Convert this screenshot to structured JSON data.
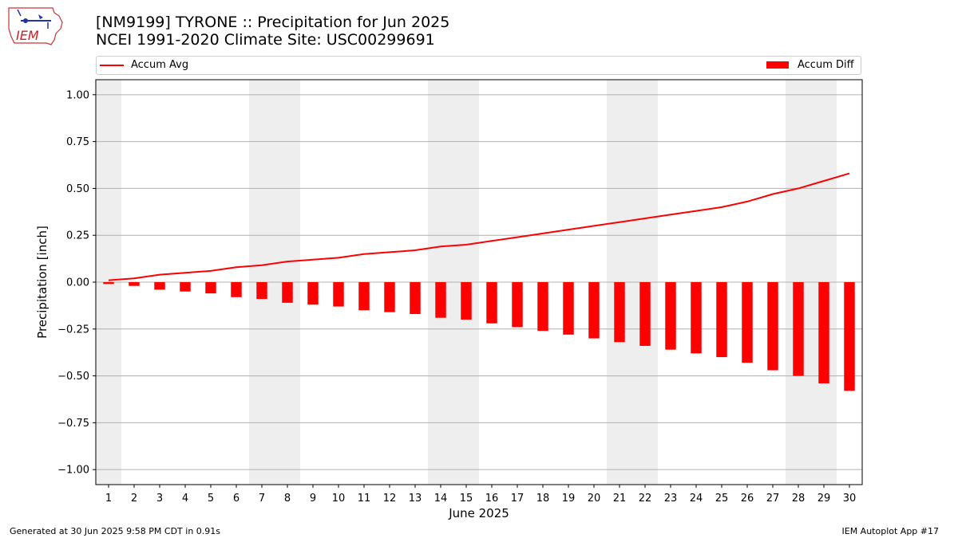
{
  "header": {
    "title_line1": "[NM9199] TYRONE :: Precipitation for Jun 2025",
    "title_line2": "NCEI 1991-2020 Climate Site: USC00299691"
  },
  "logo": {
    "text": "IEM"
  },
  "footer": {
    "left": "Generated at 30 Jun 2025 9:58 PM CDT in 0.91s",
    "right": "IEM Autoplot App #17"
  },
  "colors": {
    "accent": "#ff0000",
    "weekend_shade": "#eeeeee",
    "grid": "#b0b0b0"
  },
  "chart_data": {
    "type": "bar",
    "title": "[NM9199] TYRONE :: Precipitation for Jun 2025",
    "subtitle": "NCEI 1991-2020 Climate Site: USC00299691",
    "xlabel": "June 2025",
    "ylabel": "Precipitation [inch]",
    "ylim": [
      -1.08,
      1.08
    ],
    "yticks": [
      -1.0,
      -0.75,
      -0.5,
      -0.25,
      0.0,
      0.25,
      0.5,
      0.75,
      1.0
    ],
    "ytick_labels": [
      "−1.00",
      "−0.75",
      "−0.50",
      "−0.25",
      "0.00",
      "0.25",
      "0.50",
      "0.75",
      "1.00"
    ],
    "categories": [
      "1",
      "2",
      "3",
      "4",
      "5",
      "6",
      "7",
      "8",
      "9",
      "10",
      "11",
      "12",
      "13",
      "14",
      "15",
      "16",
      "17",
      "18",
      "19",
      "20",
      "21",
      "22",
      "23",
      "24",
      "25",
      "26",
      "27",
      "28",
      "29",
      "30"
    ],
    "grid": true,
    "legend_placement": "top",
    "weekend_shaded_days": [
      [
        1,
        1
      ],
      [
        7,
        8
      ],
      [
        14,
        15
      ],
      [
        21,
        22
      ],
      [
        28,
        29
      ]
    ],
    "series": [
      {
        "name": "Accum Avg",
        "type": "line",
        "color": "#ff0000",
        "values": [
          0.01,
          0.02,
          0.04,
          0.05,
          0.06,
          0.08,
          0.09,
          0.11,
          0.12,
          0.13,
          0.15,
          0.16,
          0.17,
          0.19,
          0.2,
          0.22,
          0.24,
          0.26,
          0.28,
          0.3,
          0.32,
          0.34,
          0.36,
          0.38,
          0.4,
          0.43,
          0.47,
          0.5,
          0.54,
          0.58
        ]
      },
      {
        "name": "Accum Diff",
        "type": "bar",
        "color": "#ff0000",
        "values": [
          -0.01,
          -0.02,
          -0.04,
          -0.05,
          -0.06,
          -0.08,
          -0.09,
          -0.11,
          -0.12,
          -0.13,
          -0.15,
          -0.16,
          -0.17,
          -0.19,
          -0.2,
          -0.22,
          -0.24,
          -0.26,
          -0.28,
          -0.3,
          -0.32,
          -0.34,
          -0.36,
          -0.38,
          -0.4,
          -0.43,
          -0.47,
          -0.5,
          -0.54,
          -0.58
        ]
      }
    ]
  }
}
